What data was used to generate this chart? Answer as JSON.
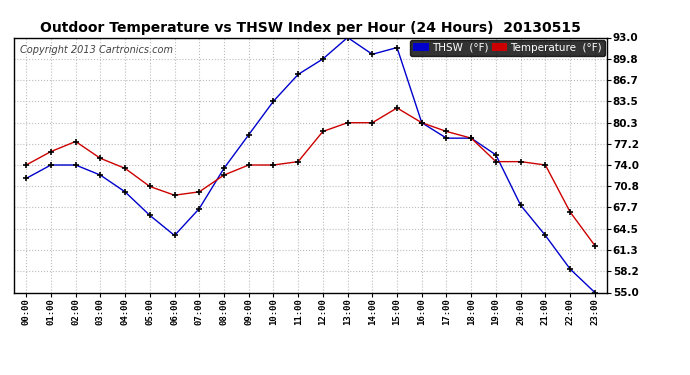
{
  "title": "Outdoor Temperature vs THSW Index per Hour (24 Hours)  20130515",
  "copyright": "Copyright 2013 Cartronics.com",
  "hours": [
    0,
    1,
    2,
    3,
    4,
    5,
    6,
    7,
    8,
    9,
    10,
    11,
    12,
    13,
    14,
    15,
    16,
    17,
    18,
    19,
    20,
    21,
    22,
    23
  ],
  "hour_labels": [
    "00:00",
    "01:00",
    "02:00",
    "03:00",
    "04:00",
    "05:00",
    "06:00",
    "07:00",
    "08:00",
    "09:00",
    "10:00",
    "11:00",
    "12:00",
    "13:00",
    "14:00",
    "15:00",
    "16:00",
    "17:00",
    "18:00",
    "19:00",
    "20:00",
    "21:00",
    "22:00",
    "23:00"
  ],
  "thsw": [
    72.0,
    74.0,
    74.0,
    72.5,
    70.0,
    66.5,
    63.5,
    67.5,
    73.5,
    78.5,
    83.5,
    87.5,
    89.8,
    93.0,
    90.5,
    91.5,
    80.3,
    78.0,
    78.0,
    75.5,
    68.0,
    63.5,
    58.5,
    55.0
  ],
  "temp": [
    74.0,
    76.0,
    77.5,
    75.0,
    73.5,
    70.8,
    69.5,
    70.0,
    72.5,
    74.0,
    74.0,
    74.5,
    79.0,
    80.3,
    80.3,
    82.5,
    80.3,
    79.0,
    78.0,
    74.5,
    74.5,
    74.0,
    67.0,
    62.0
  ],
  "thsw_color": "#0000cc",
  "temp_color": "#cc0000",
  "bg_color": "#ffffff",
  "grid_color": "#bbbbbb",
  "ylim_min": 55.0,
  "ylim_max": 93.0,
  "yticks": [
    55.0,
    58.2,
    61.3,
    64.5,
    67.7,
    70.8,
    74.0,
    77.2,
    80.3,
    83.5,
    86.7,
    89.8,
    93.0
  ],
  "legend_thsw_bg": "#0000cc",
  "legend_temp_bg": "#cc0000",
  "title_fontsize": 10,
  "copyright_fontsize": 7
}
